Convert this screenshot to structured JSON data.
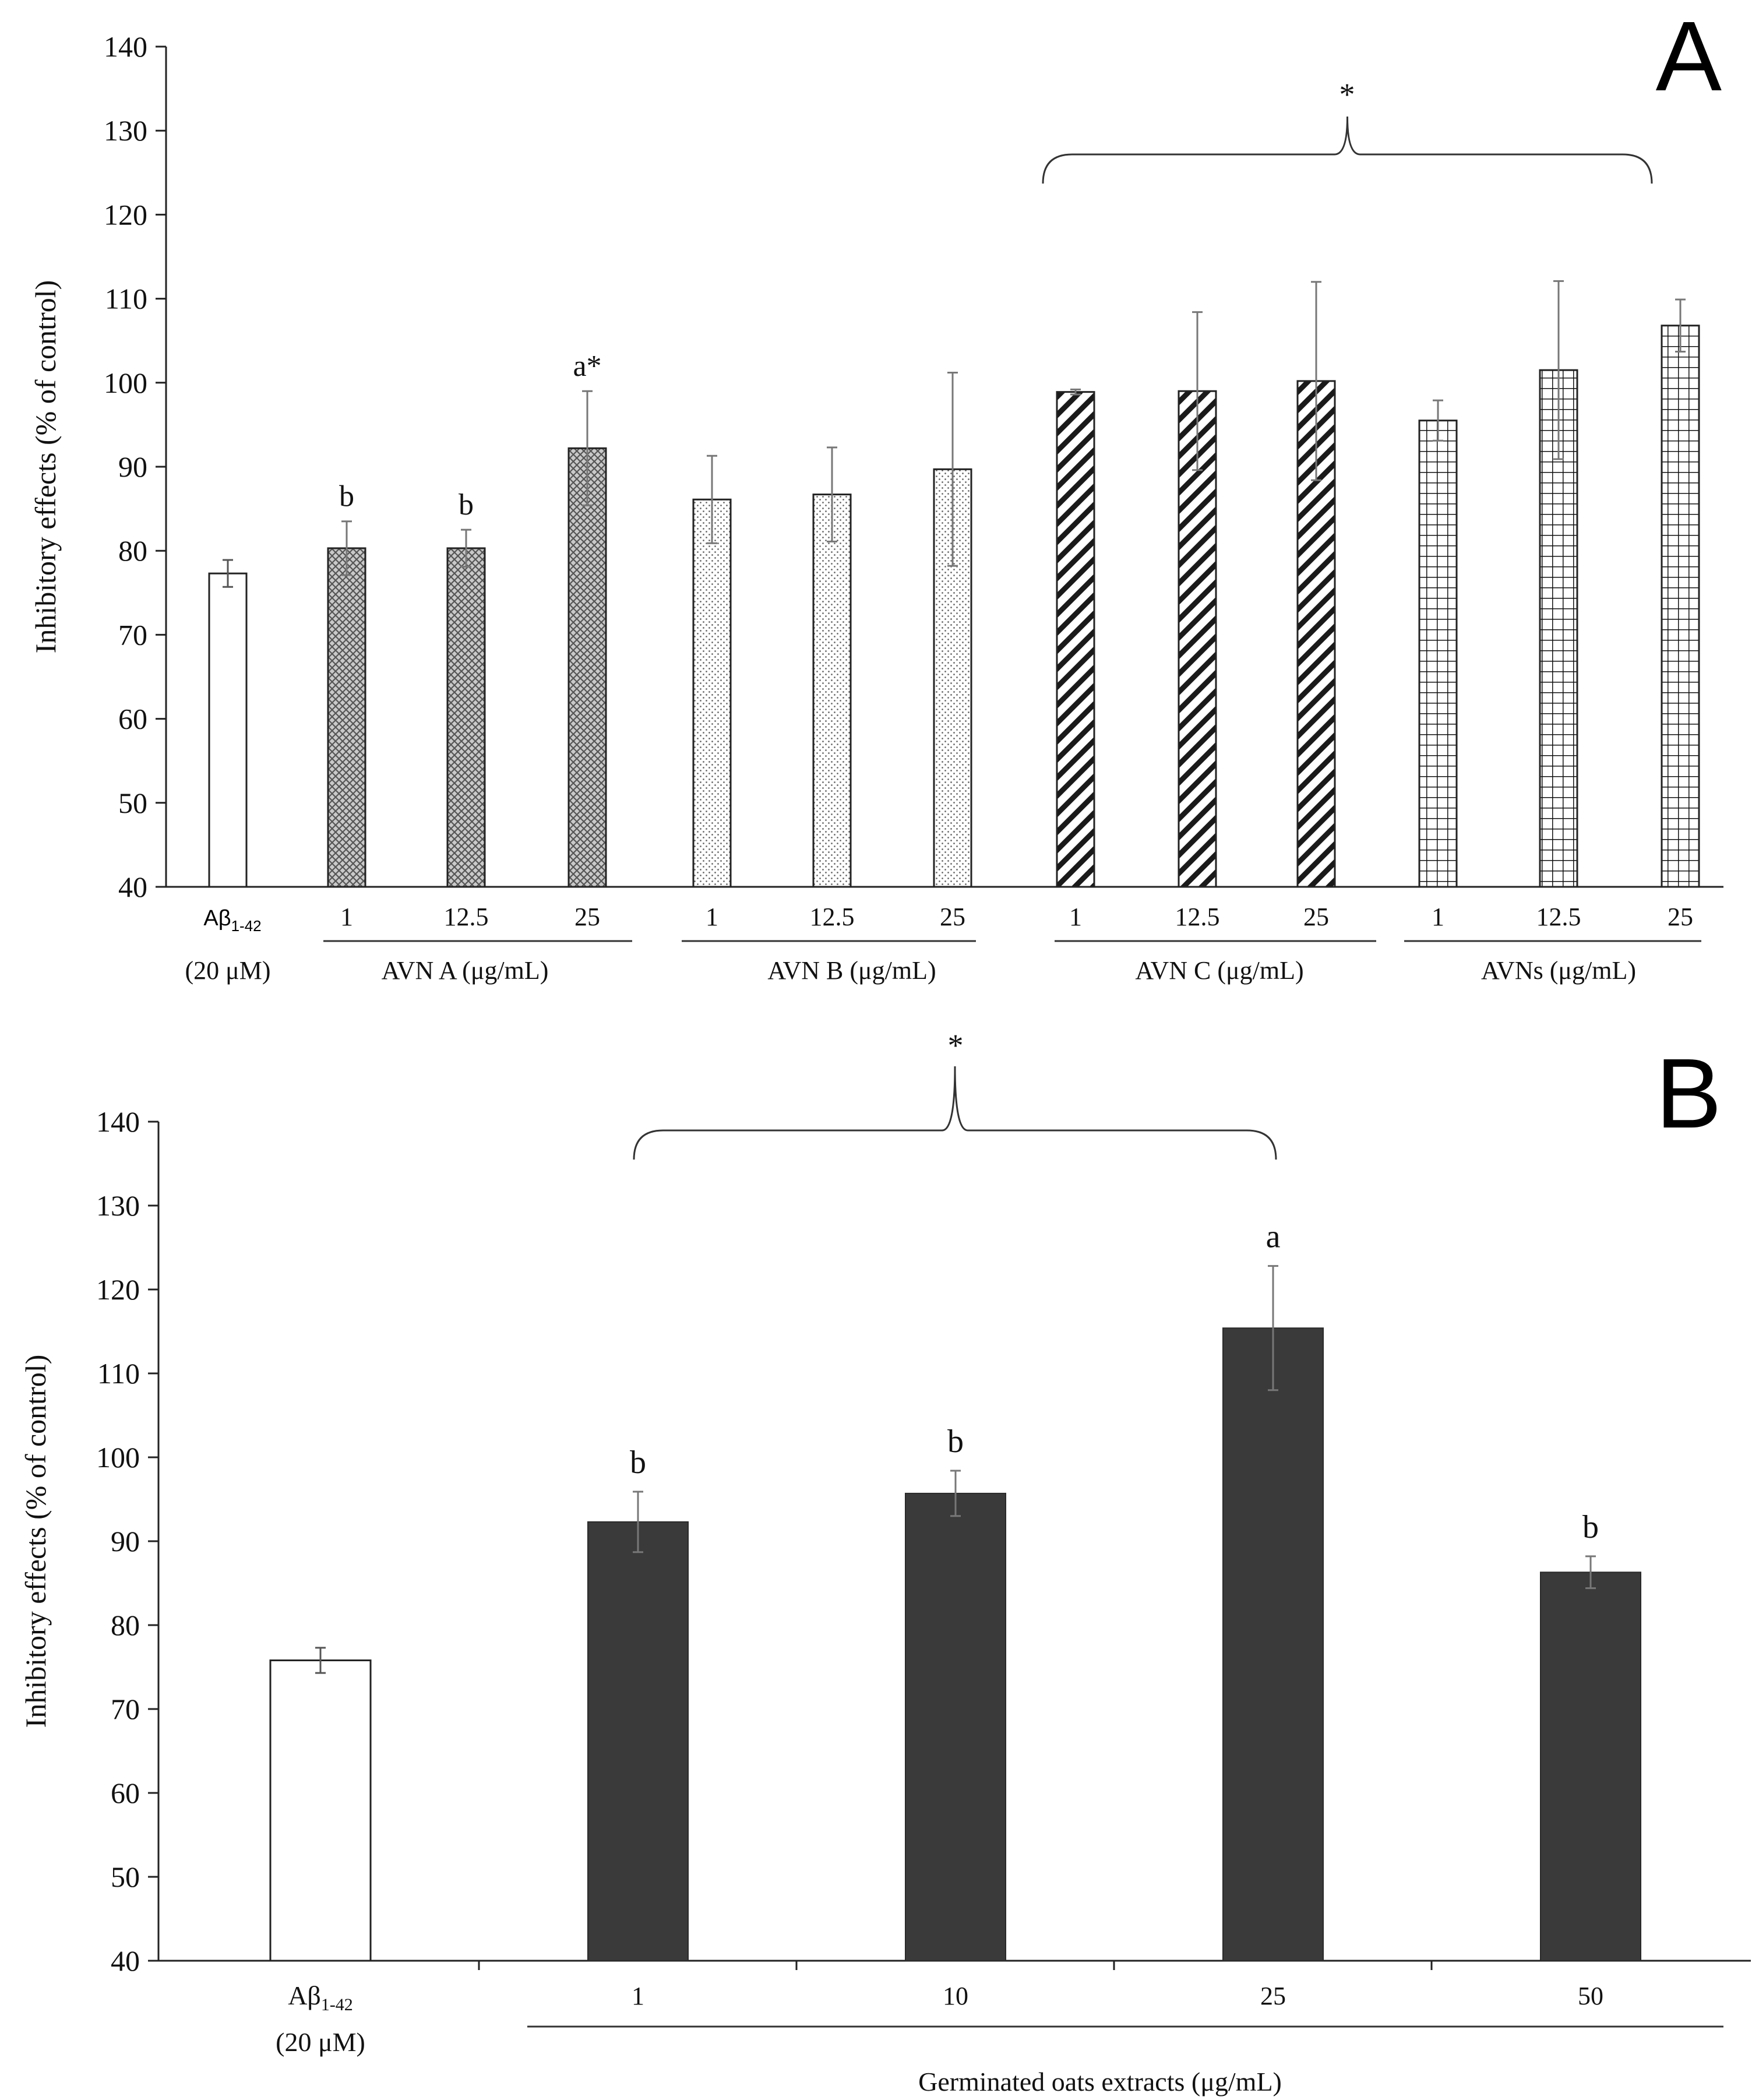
{
  "chart_data": [
    {
      "panel": "A",
      "type": "bar",
      "ylabel": "Inhibitory effects (% of control)",
      "ylim": [
        40,
        140
      ],
      "yticks": [
        40,
        50,
        60,
        70,
        80,
        90,
        100,
        110,
        120,
        130,
        140
      ],
      "control": {
        "label_main": "Aβ",
        "label_sub": "1-42",
        "label_conc": "(20 μM)",
        "value": 77.3,
        "error": 1.6
      },
      "groups": [
        {
          "name": "AVN A (μg/mL)",
          "pattern": "crosshatch",
          "doses": [
            "1",
            "12.5",
            "25"
          ],
          "values": [
            80.3,
            80.3,
            92.2
          ],
          "errors": [
            3.2,
            2.2,
            6.8
          ],
          "annotations": [
            "b",
            "b",
            "a*"
          ]
        },
        {
          "name": "AVN B (μg/mL)",
          "pattern": "dots",
          "doses": [
            "1",
            "12.5",
            "25"
          ],
          "values": [
            86.1,
            86.7,
            89.7
          ],
          "errors": [
            5.2,
            5.6,
            11.5
          ],
          "annotations": [
            "",
            "",
            ""
          ]
        },
        {
          "name": "AVN C (μg/mL)",
          "pattern": "diagonal",
          "doses": [
            "1",
            "12.5",
            "25"
          ],
          "values": [
            98.9,
            99.0,
            100.2
          ],
          "errors": [
            0.3,
            9.4,
            11.8
          ],
          "annotations": [
            "",
            "",
            ""
          ]
        },
        {
          "name": "AVNs (μg/mL)",
          "pattern": "grid",
          "doses": [
            "1",
            "12.5",
            "25"
          ],
          "values": [
            95.5,
            101.5,
            106.8
          ],
          "errors": [
            2.4,
            10.6,
            3.1
          ],
          "annotations": [
            "",
            "",
            ""
          ]
        }
      ],
      "bracket_mark": "*"
    },
    {
      "panel": "B",
      "type": "bar",
      "ylabel": "Inhibitory effects (% of control)",
      "ylim": [
        40,
        140
      ],
      "yticks": [
        40,
        50,
        60,
        70,
        80,
        90,
        100,
        110,
        120,
        130,
        140
      ],
      "control": {
        "label_main": "Aβ",
        "label_sub": "1-42",
        "label_conc": "(20 μM)",
        "value": 75.8,
        "error": 1.5
      },
      "group": {
        "name": "Germinated oats extracts (μg/mL)",
        "doses": [
          "1",
          "10",
          "25",
          "50"
        ],
        "values": [
          92.3,
          95.7,
          115.4,
          86.3
        ],
        "errors": [
          3.6,
          2.7,
          7.4,
          1.9
        ],
        "annotations": [
          "b",
          "b",
          "a",
          "b"
        ]
      },
      "bracket_mark": "*"
    }
  ]
}
